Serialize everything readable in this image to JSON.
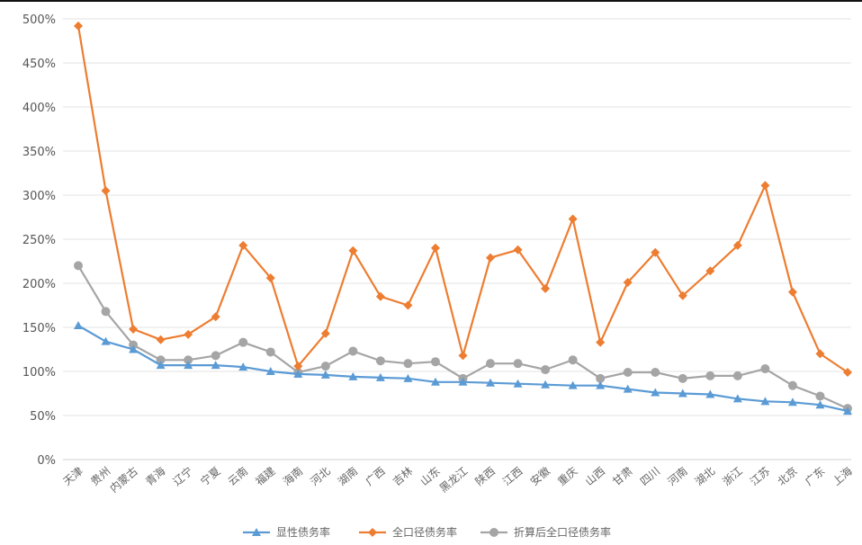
{
  "chart_data": {
    "type": "line",
    "title": "",
    "xlabel": "",
    "ylabel": "",
    "ylim": [
      0,
      500
    ],
    "yticks": [
      0,
      50,
      100,
      150,
      200,
      250,
      300,
      350,
      400,
      450,
      500
    ],
    "ytick_labels": [
      "0%",
      "50%",
      "100%",
      "150%",
      "200%",
      "250%",
      "300%",
      "350%",
      "400%",
      "450%",
      "500%"
    ],
    "grid": true,
    "legend_position": "bottom",
    "categories": [
      "天津",
      "贵州",
      "内蒙古",
      "青海",
      "辽宁",
      "宁夏",
      "云南",
      "福建",
      "海南",
      "河北",
      "湖南",
      "广西",
      "吉林",
      "山东",
      "黑龙江",
      "陕西",
      "江西",
      "安徽",
      "重庆",
      "山西",
      "甘肃",
      "四川",
      "河南",
      "湖北",
      "浙江",
      "江苏",
      "北京",
      "广东",
      "上海"
    ],
    "series": [
      {
        "name": "显性债务率",
        "color": "#5b9bd5",
        "marker": "triangle",
        "values": [
          152,
          134,
          125,
          107,
          107,
          107,
          105,
          100,
          97,
          96,
          94,
          93,
          92,
          88,
          88,
          87,
          86,
          85,
          84,
          84,
          80,
          76,
          75,
          74,
          69,
          66,
          65,
          62,
          55
        ]
      },
      {
        "name": "全口径债务率",
        "color": "#ed7d31",
        "marker": "diamond",
        "values": [
          492,
          305,
          148,
          136,
          142,
          162,
          243,
          206,
          106,
          143,
          237,
          185,
          175,
          240,
          118,
          229,
          238,
          194,
          273,
          133,
          201,
          235,
          186,
          214,
          243,
          311,
          190,
          120,
          99
        ]
      },
      {
        "name": "折算后全口径债务率",
        "color": "#a5a5a5",
        "marker": "circle",
        "values": [
          220,
          168,
          130,
          113,
          113,
          118,
          133,
          122,
          99,
          106,
          123,
          112,
          109,
          111,
          92,
          109,
          109,
          102,
          113,
          92,
          99,
          99,
          92,
          95,
          95,
          103,
          84,
          72,
          58
        ]
      }
    ]
  }
}
